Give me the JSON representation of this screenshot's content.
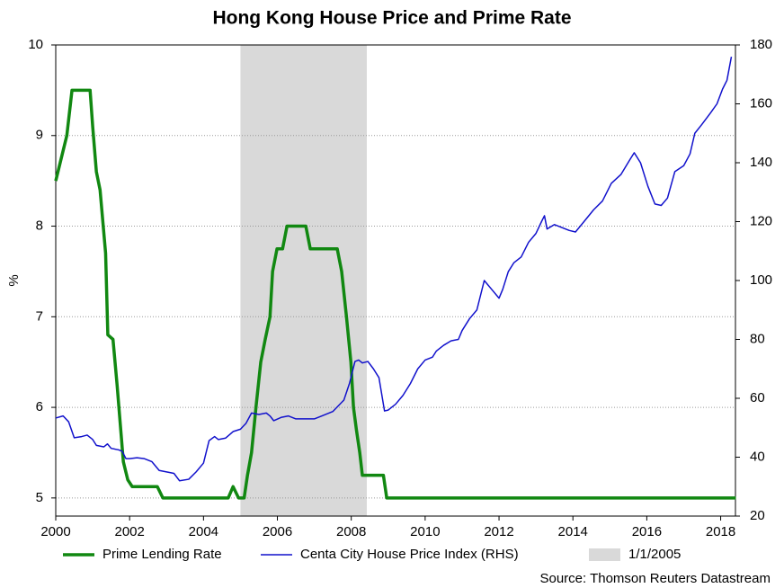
{
  "chart_data": {
    "type": "line",
    "title": "Hong Kong House Price and Prime Rate",
    "y_label": "%",
    "source": "Source: Thomson Reuters Datastream",
    "xlim": [
      2000,
      2018.4
    ],
    "xticks": [
      2000,
      2002,
      2004,
      2006,
      2008,
      2010,
      2012,
      2014,
      2016,
      2018
    ],
    "ylim": [
      4.8,
      10
    ],
    "yticks": [
      5,
      6,
      7,
      8,
      9,
      10
    ],
    "y2lim": [
      20,
      180
    ],
    "y2ticks": [
      20,
      40,
      60,
      80,
      100,
      120,
      140,
      160,
      180
    ],
    "grid": true,
    "shade": {
      "label": "1/1/2005",
      "x": [
        2005,
        2008.42
      ],
      "color": "#d9d9d9"
    },
    "series": [
      {
        "name": "Prime Lending Rate",
        "color": "#118811",
        "axis": "y",
        "x": [
          2000.0,
          2000.15,
          2000.3,
          2000.44,
          2000.93,
          2001.0,
          2001.1,
          2001.2,
          2001.35,
          2001.41,
          2001.55,
          2001.66,
          2001.76,
          2001.83,
          2001.95,
          2002.07,
          2002.75,
          2002.9,
          2004.67,
          2004.8,
          2004.95,
          2005.1,
          2005.19,
          2005.3,
          2005.42,
          2005.55,
          2005.67,
          2005.8,
          2005.87,
          2005.99,
          2006.14,
          2006.26,
          2006.77,
          2006.89,
          2007.62,
          2007.74,
          2007.87,
          2007.99,
          2008.06,
          2008.14,
          2008.23,
          2008.3,
          2008.87,
          2008.96,
          2018.41
        ],
        "values": [
          8.5,
          8.75,
          9.0,
          9.5,
          9.5,
          9.1,
          8.6,
          8.4,
          7.7,
          6.8,
          6.75,
          6.25,
          5.75,
          5.4,
          5.2,
          5.125,
          5.125,
          5.0,
          5.0,
          5.125,
          5.0,
          5.0,
          5.25,
          5.5,
          6.0,
          6.5,
          6.75,
          7.0,
          7.5,
          7.75,
          7.75,
          8.0,
          8.0,
          7.75,
          7.75,
          7.5,
          7.0,
          6.5,
          6.0,
          5.75,
          5.5,
          5.25,
          5.25,
          5.0,
          5.0
        ]
      },
      {
        "name": "Centa City House Price Index (RHS)",
        "color": "#1111cc",
        "axis": "y2",
        "x": [
          2000.0,
          2000.2,
          2000.35,
          2000.5,
          2000.7,
          2000.85,
          2001.0,
          2001.1,
          2001.3,
          2001.4,
          2001.5,
          2001.7,
          2001.8,
          2001.9,
          2002.0,
          2002.2,
          2002.4,
          2002.6,
          2002.8,
          2003.0,
          2003.2,
          2003.35,
          2003.6,
          2003.8,
          2004.0,
          2004.15,
          2004.3,
          2004.4,
          2004.6,
          2004.8,
          2005.0,
          2005.15,
          2005.3,
          2005.5,
          2005.7,
          2005.8,
          2005.9,
          2006.1,
          2006.3,
          2006.5,
          2006.8,
          2007.0,
          2007.2,
          2007.5,
          2007.8,
          2007.95,
          2008.1,
          2008.2,
          2008.3,
          2008.45,
          2008.6,
          2008.75,
          2008.9,
          2009.0,
          2009.2,
          2009.4,
          2009.6,
          2009.8,
          2010.0,
          2010.2,
          2010.3,
          2010.5,
          2010.7,
          2010.9,
          2011.0,
          2011.2,
          2011.4,
          2011.6,
          2011.8,
          2012.0,
          2012.1,
          2012.25,
          2012.4,
          2012.6,
          2012.8,
          2013.0,
          2013.15,
          2013.23,
          2013.3,
          2013.5,
          2013.7,
          2013.9,
          2014.07,
          2014.3,
          2014.56,
          2014.8,
          2015.04,
          2015.3,
          2015.54,
          2015.66,
          2015.83,
          2016.03,
          2016.22,
          2016.39,
          2016.56,
          2016.76,
          2017.0,
          2017.17,
          2017.3,
          2017.49,
          2017.73,
          2017.9,
          2018.05,
          2018.17,
          2018.29
        ],
        "values": [
          53.3,
          54,
          52,
          46.6,
          47,
          47.5,
          46,
          44,
          43.5,
          44.5,
          43,
          42.5,
          42,
          39.5,
          39.5,
          39.8,
          39.5,
          38.5,
          35.5,
          35,
          34.5,
          32,
          32.5,
          35,
          38,
          45.6,
          47,
          46,
          46.5,
          48.7,
          49.5,
          51.5,
          55,
          54.5,
          55,
          54,
          52.4,
          53.5,
          54,
          53,
          53,
          53,
          54,
          55.5,
          59.4,
          65,
          72.5,
          73,
          72,
          72.5,
          70,
          67,
          55.7,
          56,
          58,
          61,
          65,
          70,
          73,
          74,
          76,
          78,
          79.5,
          80,
          83,
          87,
          90,
          100,
          97,
          94,
          97,
          103,
          106,
          108,
          113,
          116,
          120,
          122,
          117.5,
          119,
          118,
          117,
          116.5,
          120,
          124,
          127,
          133,
          136,
          141,
          143.4,
          140,
          132,
          126,
          125.5,
          128,
          137,
          139,
          143,
          150,
          153,
          157,
          160,
          165,
          168,
          176
        ]
      }
    ]
  }
}
